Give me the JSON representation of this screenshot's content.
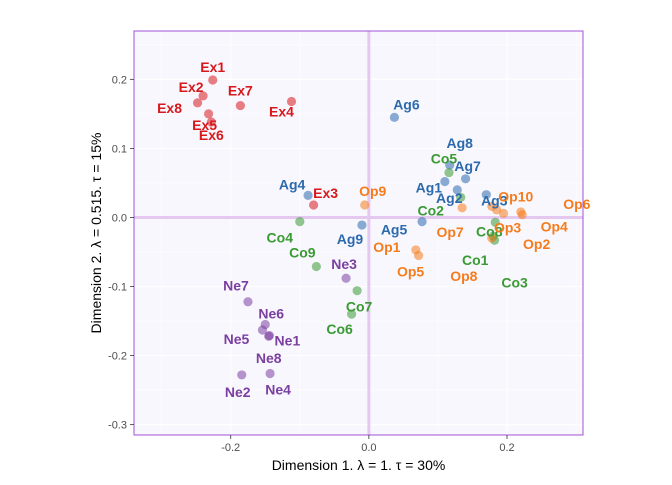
{
  "chart_data": {
    "type": "scatter",
    "title": "",
    "xlabel": "Dimension 1.   λ = 1.  τ = 30%",
    "ylabel": "Dimension 2.   λ = 0.515.  τ = 15%",
    "xlim": [
      -0.34,
      0.31
    ],
    "ylim": [
      -0.315,
      0.27
    ],
    "x_ticks": [
      -0.2,
      0.0,
      0.2
    ],
    "x_tick_labels": [
      "-0.2",
      "0.0",
      "0.2"
    ],
    "y_ticks": [
      -0.3,
      -0.2,
      -0.1,
      0.0,
      0.1,
      0.2
    ],
    "y_tick_labels": [
      "-0.3",
      "-0.2",
      "-0.1",
      "0.0",
      "0.1",
      "0.2"
    ],
    "grid": true,
    "legend": "none",
    "colors": {
      "Ex": "#d7191c",
      "Ag": "#2c6aad",
      "Co": "#3a9a33",
      "Op": "#f57c1c",
      "Ne": "#7b3fa0",
      "panel_bg": "#f8f7fe",
      "panel_border": "#a050d8",
      "origin_line": "#e4c8f0",
      "grid": "#ffffff"
    },
    "points": [
      {
        "label": "Ex1",
        "group": "Ex",
        "x": -0.226,
        "y": 0.199
      },
      {
        "label": "Ex2",
        "group": "Ex",
        "x": -0.24,
        "y": 0.176
      },
      {
        "label": "Ex8",
        "group": "Ex",
        "x": -0.248,
        "y": 0.166
      },
      {
        "label": "Ex5",
        "group": "Ex",
        "x": -0.232,
        "y": 0.15
      },
      {
        "label": "Ex6",
        "group": "Ex",
        "x": -0.228,
        "y": 0.138
      },
      {
        "label": "Ex7",
        "group": "Ex",
        "x": -0.186,
        "y": 0.162
      },
      {
        "label": "Ex4",
        "group": "Ex",
        "x": -0.112,
        "y": 0.168
      },
      {
        "label": "Ex3",
        "group": "Ex",
        "x": -0.08,
        "y": 0.018
      },
      {
        "label": "Ag6",
        "group": "Ag",
        "x": 0.037,
        "y": 0.145
      },
      {
        "label": "Ag8",
        "group": "Ag",
        "x": 0.117,
        "y": 0.076
      },
      {
        "label": "Ag7",
        "group": "Ag",
        "x": 0.14,
        "y": 0.056
      },
      {
        "label": "Ag1",
        "group": "Ag",
        "x": 0.11,
        "y": 0.052
      },
      {
        "label": "Ag2",
        "group": "Ag",
        "x": 0.128,
        "y": 0.04
      },
      {
        "label": "Ag3",
        "group": "Ag",
        "x": 0.17,
        "y": 0.033
      },
      {
        "label": "Ag4",
        "group": "Ag",
        "x": -0.088,
        "y": 0.032
      },
      {
        "label": "Ag5",
        "group": "Ag",
        "x": 0.077,
        "y": -0.006
      },
      {
        "label": "Ag9",
        "group": "Ag",
        "x": -0.01,
        "y": -0.011
      },
      {
        "label": "Co5",
        "group": "Co",
        "x": 0.116,
        "y": 0.065
      },
      {
        "label": "Co2",
        "group": "Co",
        "x": 0.133,
        "y": 0.029
      },
      {
        "label": "Co8",
        "group": "Co",
        "x": 0.183,
        "y": -0.007
      },
      {
        "label": "Co4",
        "group": "Co",
        "x": -0.1,
        "y": -0.006
      },
      {
        "label": "Co1",
        "group": "Co",
        "x": 0.18,
        "y": -0.027
      },
      {
        "label": "Co3",
        "group": "Co",
        "x": 0.182,
        "y": -0.033
      },
      {
        "label": "Co9",
        "group": "Co",
        "x": -0.076,
        "y": -0.071
      },
      {
        "label": "Co7",
        "group": "Co",
        "x": -0.017,
        "y": -0.106
      },
      {
        "label": "Co6",
        "group": "Co",
        "x": -0.025,
        "y": -0.14
      },
      {
        "label": "Op9",
        "group": "Op",
        "x": -0.006,
        "y": 0.018
      },
      {
        "label": "Op10",
        "group": "Op",
        "x": 0.178,
        "y": 0.016
      },
      {
        "label": "Op6",
        "group": "Op",
        "x": 0.22,
        "y": 0.008
      },
      {
        "label": "Op3",
        "group": "Op",
        "x": 0.195,
        "y": 0.006
      },
      {
        "label": "Op4",
        "group": "Op",
        "x": 0.222,
        "y": 0.004
      },
      {
        "label": "Op7",
        "group": "Op",
        "x": 0.135,
        "y": 0.014
      },
      {
        "label": "Op2",
        "group": "Op",
        "x": 0.185,
        "y": 0.011
      },
      {
        "label": "Op1",
        "group": "Op",
        "x": 0.068,
        "y": -0.047
      },
      {
        "label": "Op5",
        "group": "Op",
        "x": 0.072,
        "y": -0.055
      },
      {
        "label": "Op8",
        "group": "Op",
        "x": 0.178,
        "y": -0.03
      },
      {
        "label": "Ne7",
        "group": "Ne",
        "x": -0.175,
        "y": -0.122
      },
      {
        "label": "Ne3",
        "group": "Ne",
        "x": -0.033,
        "y": -0.088
      },
      {
        "label": "Ne6",
        "group": "Ne",
        "x": -0.15,
        "y": -0.155
      },
      {
        "label": "Ne5",
        "group": "Ne",
        "x": -0.154,
        "y": -0.163
      },
      {
        "label": "Ne1",
        "group": "Ne",
        "x": -0.144,
        "y": -0.171
      },
      {
        "label": "Ne8",
        "group": "Ne",
        "x": -0.145,
        "y": -0.172
      },
      {
        "label": "Ne2",
        "group": "Ne",
        "x": -0.184,
        "y": -0.228
      },
      {
        "label": "Ne4",
        "group": "Ne",
        "x": -0.143,
        "y": -0.226
      }
    ]
  }
}
